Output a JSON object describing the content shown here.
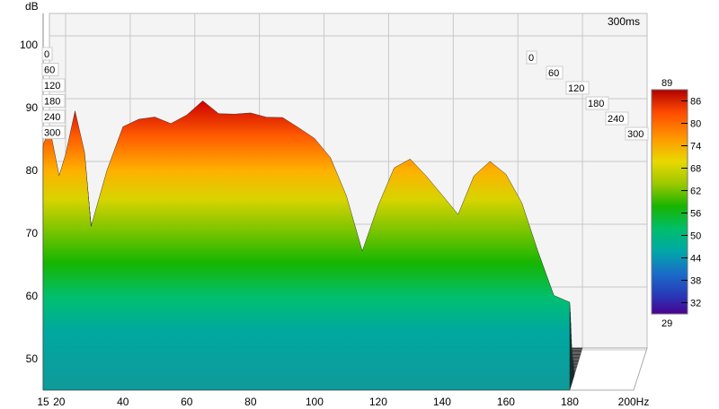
{
  "chart_data": {
    "type": "area",
    "title": "",
    "y_unit": "dB",
    "x_unit": "Hz",
    "time_label": "300ms",
    "xlim": [
      15,
      200
    ],
    "ylim": [
      45,
      105
    ],
    "x_ticks": [
      "15",
      "20",
      "40",
      "60",
      "80",
      "100",
      "120",
      "140",
      "160",
      "180",
      "200Hz"
    ],
    "y_ticks": [
      "100",
      "90",
      "80",
      "70",
      "60",
      "50"
    ],
    "time_ticks_left": [
      "0",
      "60",
      "120",
      "180",
      "240",
      "300"
    ],
    "time_ticks_right": [
      "0",
      "60",
      "120",
      "180",
      "240",
      "300"
    ],
    "colorbar": {
      "max_label": "89",
      "min_label": "29",
      "ticks": [
        "86",
        "80",
        "74",
        "68",
        "62",
        "56",
        "50",
        "44",
        "38",
        "32"
      ],
      "colors": [
        "#cc0000",
        "#ff4400",
        "#ff9900",
        "#e6d400",
        "#a8cc00",
        "#22b800",
        "#00c060",
        "#00a8a0",
        "#1070c0",
        "#2030b0",
        "#400090"
      ]
    },
    "series": [
      {
        "time_ms": 0,
        "x": [
          15,
          17,
          20,
          22,
          25,
          28,
          30,
          35,
          40,
          45,
          50,
          55,
          60,
          65,
          70,
          75,
          80,
          85,
          90,
          95,
          100,
          105,
          110,
          115,
          120,
          125,
          130,
          135,
          140,
          145,
          150,
          155,
          160,
          165,
          170,
          175,
          180
        ],
        "y": [
          84,
          86,
          78,
          82,
          90,
          84,
          72,
          80,
          86,
          87,
          88,
          88,
          90,
          92,
          89,
          88,
          88,
          88,
          89,
          88,
          86,
          82,
          75,
          66,
          74,
          81,
          83,
          80,
          76,
          72,
          78,
          81,
          80,
          76,
          68,
          60,
          58
        ]
      }
    ]
  }
}
